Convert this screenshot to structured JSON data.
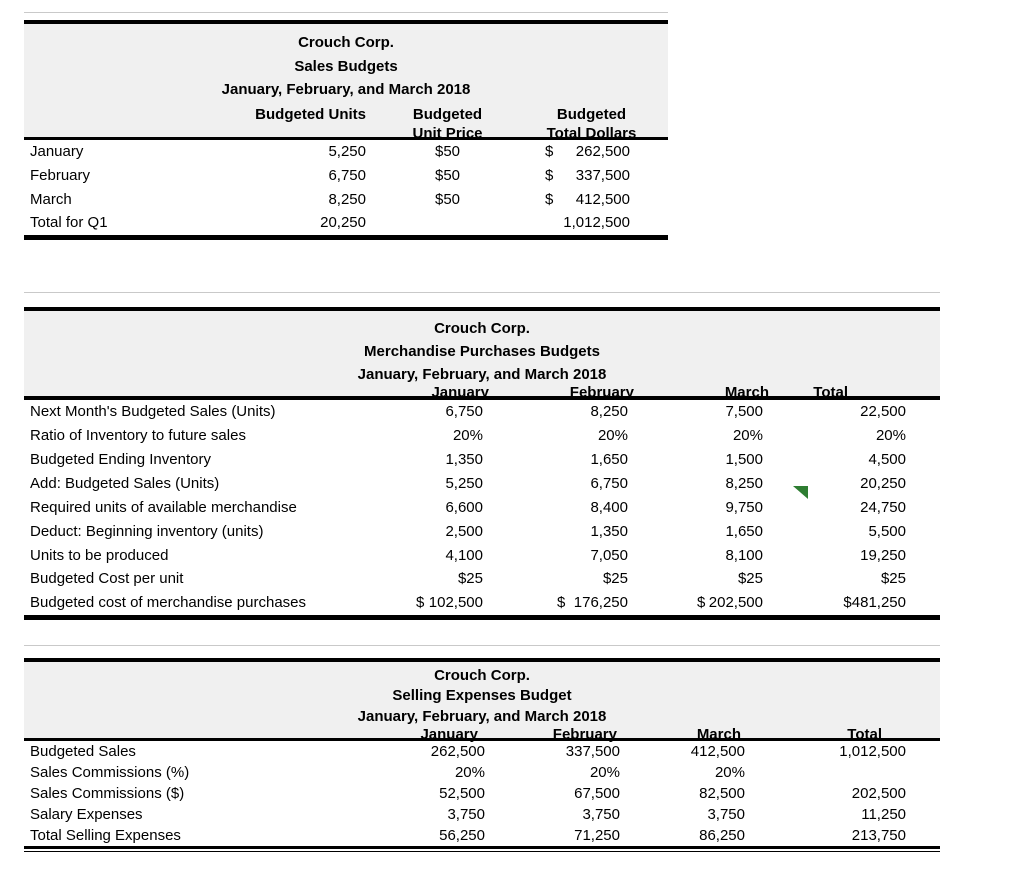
{
  "marker": {
    "name": "green-triangle-flag",
    "color": "#2e7d32"
  },
  "tables": {
    "t1": {
      "title": "Crouch Corp.",
      "subtitle": "Sales Budgets",
      "period": "January, February, and March 2018",
      "col_units": "Budgeted Units",
      "col_price_1": "Budgeted",
      "col_price_2": "Unit Price",
      "col_total_1": "Budgeted",
      "col_total_2": "Total Dollars",
      "rows": [
        [
          "January",
          "5,250",
          "$50",
          {
            "cur": "$",
            "val": "262,500"
          }
        ],
        [
          "February",
          "6,750",
          "$50",
          {
            "cur": "$",
            "val": "337,500"
          }
        ],
        [
          "March",
          "8,250",
          "$50",
          {
            "cur": "$",
            "val": "412,500"
          }
        ],
        [
          "Total for Q1",
          "20,250",
          "",
          "1,012,500"
        ]
      ]
    },
    "t2": {
      "title": "Crouch Corp.",
      "subtitle": "Merchandise Purchases Budgets",
      "period": "January, February, and March 2018",
      "columns": [
        "January",
        "February",
        "March",
        "Total"
      ],
      "rows": [
        [
          "Next Month's Budgeted Sales (Units)",
          "6,750",
          "8,250",
          "7,500",
          "22,500"
        ],
        [
          "Ratio of Inventory to future sales",
          "20%",
          "20%",
          "20%",
          "20%"
        ],
        [
          "Budgeted Ending Inventory",
          "1,350",
          "1,650",
          "1,500",
          "4,500"
        ],
        [
          "Add: Budgeted Sales (Units)",
          "5,250",
          "6,750",
          "8,250",
          "20,250"
        ],
        [
          "Required units of available merchandise",
          "6,600",
          "8,400",
          "9,750",
          "24,750"
        ],
        [
          "Deduct: Beginning inventory (units)",
          "2,500",
          "1,350",
          "1,650",
          "5,500"
        ],
        [
          "Units to be produced",
          "4,100",
          "7,050",
          "8,100",
          "19,250"
        ],
        [
          "Budgeted Cost per unit",
          "$25",
          "$25",
          "$25",
          "$25"
        ],
        [
          "Budgeted cost of merchandise purchases",
          {
            "cur": "$",
            "val": "102,500"
          },
          {
            "cur": "$",
            "val": "176,250"
          },
          {
            "cur": "$",
            "val": "202,500"
          },
          {
            "cur": "$",
            "val": "481,250"
          }
        ]
      ]
    },
    "t3": {
      "title": "Crouch Corp.",
      "subtitle": "Selling Expenses Budget",
      "period": "January, February, and March 2018",
      "columns": [
        "January",
        "February",
        "March",
        "Total"
      ],
      "rows": [
        [
          "Budgeted Sales",
          "262,500",
          "337,500",
          "412,500",
          "1,012,500"
        ],
        [
          "Sales Commissions (%)",
          "20%",
          "20%",
          "20%",
          ""
        ],
        [
          "Sales Commissions ($)",
          "52,500",
          "67,500",
          "82,500",
          "202,500"
        ],
        [
          "Salary Expenses",
          "3,750",
          "3,750",
          "3,750",
          "11,250"
        ],
        [
          "Total Selling Expenses",
          "56,250",
          "71,250",
          "86,250",
          "213,750"
        ]
      ]
    }
  }
}
